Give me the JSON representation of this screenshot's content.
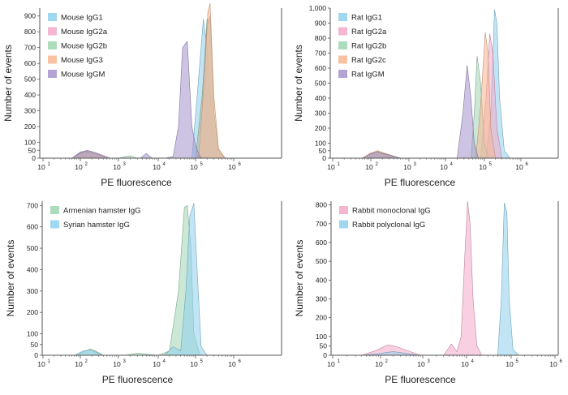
{
  "figure": {
    "background": "#ffffff",
    "axis_color": "#555555"
  },
  "chart_data": [
    {
      "type": "area",
      "xlabel": "PE fluorescence",
      "ylabel": "Number of events",
      "x_scale": "log",
      "xlim": [
        10,
        100000000
      ],
      "ylim": [
        0,
        950
      ],
      "x_ticks": [
        {
          "value": 10,
          "label": "10",
          "sup": "1"
        },
        {
          "value": 100,
          "label": "10",
          "sup": "2"
        },
        {
          "value": 1000,
          "label": "10",
          "sup": "3"
        },
        {
          "value": 10000,
          "label": "10",
          "sup": "4"
        },
        {
          "value": 100000,
          "label": "10",
          "sup": "5"
        },
        {
          "value": 1000000,
          "label": "10",
          "sup": "6"
        }
      ],
      "y_ticks": [
        "0",
        "50",
        "100",
        "200",
        "300",
        "400",
        "500",
        "600",
        "700",
        "800",
        "900"
      ],
      "y_tick_values": [
        0,
        50,
        100,
        200,
        300,
        400,
        500,
        600,
        700,
        800,
        900
      ],
      "legend_position": "top-left",
      "series": [
        {
          "name": "Mouse IgG1",
          "color": "#8fd0ee",
          "x": [
            60,
            100,
            150,
            250,
            600,
            80000,
            120000,
            160000,
            200000,
            280000,
            400000,
            600000
          ],
          "y": [
            0,
            40,
            45,
            30,
            0,
            0,
            500,
            880,
            700,
            200,
            30,
            0
          ]
        },
        {
          "name": "Mouse IgG2a",
          "color": "#f2a9c8",
          "x": [
            60,
            100,
            150,
            250,
            600,
            100000,
            150000,
            200000,
            240000,
            300000,
            400000,
            600000
          ],
          "y": [
            0,
            35,
            40,
            25,
            0,
            0,
            400,
            850,
            900,
            300,
            50,
            0
          ]
        },
        {
          "name": "Mouse IgG2b",
          "color": "#9fd6b2",
          "x": [
            60,
            100,
            150,
            250,
            600,
            1000,
            1500,
            2000,
            3000,
            100000,
            150000,
            200000,
            250000,
            300000,
            400000,
            600000
          ],
          "y": [
            0,
            30,
            35,
            25,
            0,
            0,
            10,
            15,
            0,
            0,
            400,
            880,
            850,
            300,
            50,
            0
          ]
        },
        {
          "name": "Mouse IgG3",
          "color": "#f8b792",
          "x": [
            60,
            100,
            150,
            250,
            600,
            120000,
            170000,
            210000,
            240000,
            300000,
            400000,
            600000
          ],
          "y": [
            0,
            30,
            45,
            30,
            0,
            0,
            500,
            920,
            980,
            400,
            60,
            0
          ]
        },
        {
          "name": "Mouse IgGM",
          "color": "#a493cc",
          "x": [
            60,
            100,
            150,
            250,
            600,
            2000,
            3500,
            5000,
            7000,
            15000,
            25000,
            35000,
            45000,
            60000,
            80000,
            100000,
            130000,
            150000
          ],
          "y": [
            0,
            35,
            50,
            35,
            0,
            0,
            0,
            30,
            0,
            0,
            10,
            200,
            700,
            740,
            200,
            80,
            10,
            0
          ]
        }
      ]
    },
    {
      "type": "area",
      "xlabel": "PE fluorescence",
      "ylabel": "Number of events",
      "x_scale": "log",
      "xlim": [
        10,
        100000000
      ],
      "ylim": [
        0,
        1000
      ],
      "x_ticks": [
        {
          "value": 10,
          "label": "10",
          "sup": "1"
        },
        {
          "value": 100,
          "label": "10",
          "sup": "2"
        },
        {
          "value": 1000,
          "label": "10",
          "sup": "3"
        },
        {
          "value": 10000,
          "label": "10",
          "sup": "4"
        },
        {
          "value": 100000,
          "label": "10",
          "sup": "5"
        },
        {
          "value": 1000000,
          "label": "10",
          "sup": "6"
        }
      ],
      "y_ticks": [
        "0",
        "50",
        "100",
        "200",
        "300",
        "400",
        "500",
        "600",
        "700",
        "800",
        "900",
        "1,000"
      ],
      "y_tick_values": [
        0,
        50,
        100,
        200,
        300,
        400,
        500,
        600,
        700,
        800,
        900,
        1000
      ],
      "legend_position": "top-left",
      "series": [
        {
          "name": "Rat IgG1",
          "color": "#8fd0ee",
          "x": [
            60,
            100,
            150,
            250,
            600,
            110000,
            150000,
            190000,
            220000,
            260000,
            350000,
            500000
          ],
          "y": [
            0,
            30,
            40,
            25,
            0,
            0,
            300,
            990,
            900,
            400,
            50,
            0
          ]
        },
        {
          "name": "Rat IgG2a",
          "color": "#f2a9c8",
          "x": [
            60,
            100,
            150,
            250,
            600,
            80000,
            110000,
            140000,
            170000,
            220000,
            300000
          ],
          "y": [
            0,
            30,
            40,
            30,
            0,
            0,
            400,
            830,
            700,
            200,
            0
          ]
        },
        {
          "name": "Rat IgG2b",
          "color": "#9fd6b2",
          "x": [
            60,
            100,
            150,
            250,
            600,
            45000,
            55000,
            65000,
            80000,
            100000,
            130000
          ],
          "y": [
            0,
            30,
            45,
            25,
            0,
            0,
            300,
            680,
            500,
            100,
            0
          ]
        },
        {
          "name": "Rat IgG2c",
          "color": "#f8b792",
          "x": [
            60,
            100,
            150,
            250,
            600,
            60000,
            80000,
            105000,
            125000,
            150000,
            200000
          ],
          "y": [
            0,
            35,
            50,
            30,
            0,
            0,
            350,
            840,
            700,
            200,
            0
          ]
        },
        {
          "name": "Rat IgGM",
          "color": "#a493cc",
          "x": [
            60,
            100,
            150,
            250,
            600,
            20000,
            28000,
            36000,
            45000,
            55000,
            70000
          ],
          "y": [
            0,
            30,
            40,
            25,
            0,
            0,
            300,
            620,
            400,
            100,
            0
          ]
        }
      ]
    },
    {
      "type": "area",
      "xlabel": "PE fluorescence",
      "ylabel": "Number of events",
      "x_scale": "log",
      "xlim": [
        10,
        100000000
      ],
      "ylim": [
        0,
        720
      ],
      "x_ticks": [
        {
          "value": 10,
          "label": "10",
          "sup": "1"
        },
        {
          "value": 100,
          "label": "10",
          "sup": "2"
        },
        {
          "value": 1000,
          "label": "10",
          "sup": "3"
        },
        {
          "value": 10000,
          "label": "10",
          "sup": "4"
        },
        {
          "value": 100000,
          "label": "10",
          "sup": "5"
        },
        {
          "value": 1000000,
          "label": "10",
          "sup": "6"
        }
      ],
      "y_ticks": [
        "0",
        "50",
        "100",
        "200",
        "300",
        "400",
        "500",
        "600",
        "700"
      ],
      "y_tick_values": [
        0,
        50,
        100,
        200,
        300,
        400,
        500,
        600,
        700
      ],
      "legend_position": "top-left",
      "series": [
        {
          "name": "Armenian hamster IgG",
          "color": "#9fd6b2",
          "x": [
            70,
            120,
            180,
            250,
            400,
            1500,
            3000,
            5000,
            10000,
            20000,
            35000,
            50000,
            60000,
            75000,
            90000,
            130000
          ],
          "y": [
            0,
            15,
            30,
            20,
            0,
            0,
            10,
            5,
            0,
            20,
            300,
            690,
            700,
            500,
            100,
            0
          ]
        },
        {
          "name": "Syrian hamster IgG",
          "color": "#8fd0ee",
          "x": [
            70,
            120,
            180,
            250,
            400,
            15000,
            25000,
            40000,
            55000,
            70000,
            90000,
            110000,
            140000,
            200000
          ],
          "y": [
            0,
            20,
            25,
            15,
            0,
            0,
            40,
            20,
            300,
            650,
            710,
            400,
            40,
            0
          ]
        }
      ]
    },
    {
      "type": "area",
      "xlabel": "PE fluorescence",
      "ylabel": "Number of events",
      "x_scale": "log",
      "xlim": [
        10,
        100000000
      ],
      "ylim": [
        0,
        820
      ],
      "x_ticks": [
        {
          "value": 10,
          "label": "10",
          "sup": "1"
        },
        {
          "value": 100,
          "label": "10",
          "sup": "2"
        },
        {
          "value": 1000,
          "label": "10",
          "sup": "3"
        },
        {
          "value": 10000,
          "label": "10",
          "sup": "4"
        },
        {
          "value": 100000,
          "label": "10",
          "sup": "5"
        },
        {
          "value": 1000000,
          "label": "10",
          "sup": "6"
        }
      ],
      "y_ticks": [
        "0",
        "50",
        "100",
        "200",
        "300",
        "400",
        "500",
        "600",
        "700",
        "800"
      ],
      "y_tick_values": [
        0,
        50,
        100,
        200,
        300,
        400,
        500,
        600,
        700,
        800
      ],
      "legend_position": "top-left",
      "series": [
        {
          "name": "Rabbit monoclonal IgG",
          "color": "#f2a9c8",
          "x": [
            40,
            80,
            150,
            250,
            500,
            900,
            3000,
            4500,
            6000,
            7500,
            9000,
            10500,
            12000,
            14000,
            17000,
            22000
          ],
          "y": [
            0,
            25,
            55,
            45,
            20,
            0,
            0,
            60,
            20,
            100,
            500,
            820,
            700,
            300,
            50,
            0
          ]
        },
        {
          "name": "Rabbit polyclonal  IgG",
          "color": "#8fd0ee",
          "x": [
            40,
            100,
            200,
            400,
            800,
            50000,
            60000,
            70000,
            80000,
            90000,
            110000,
            150000
          ],
          "y": [
            0,
            10,
            20,
            10,
            0,
            0,
            300,
            810,
            760,
            300,
            30,
            0
          ]
        }
      ]
    }
  ]
}
